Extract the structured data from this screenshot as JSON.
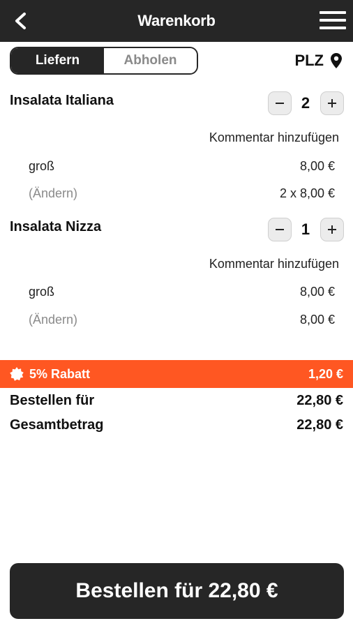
{
  "header": {
    "title": "Warenkorb"
  },
  "mode_toggle": {
    "deliver_label": "Liefern",
    "pickup_label": "Abholen",
    "selected": "Liefern"
  },
  "postcode": {
    "label": "PLZ"
  },
  "items": [
    {
      "name": "Insalata Italiana",
      "quantity": "2",
      "comment_label": "Kommentar hinzufügen",
      "size": "groß",
      "size_price": "8,00 €",
      "change_label": "(Ändern)",
      "line_total": "2 x 8,00 €"
    },
    {
      "name": "Insalata Nizza",
      "quantity": "1",
      "comment_label": "Kommentar hinzufügen",
      "size": "groß",
      "size_price": "8,00 €",
      "change_label": "(Ändern)",
      "line_total": "8,00 €"
    }
  ],
  "discount": {
    "label": "5% Rabatt",
    "amount": "1,20 €",
    "color": "#ff5722"
  },
  "summary": {
    "order_for_label": "Bestellen für",
    "order_for_value": "22,80 €",
    "total_label": "Gesamtbetrag",
    "total_value": "22,80 €"
  },
  "order_button": {
    "label": "Bestellen für 22,80 €"
  },
  "colors": {
    "dark": "#262626",
    "accent": "#ff5722"
  },
  "icons": {
    "back": "chevron-left-icon",
    "menu": "hamburger-menu-icon",
    "location": "location-pin-icon",
    "minus": "minus-icon",
    "plus": "plus-icon",
    "discount": "badge-icon"
  }
}
